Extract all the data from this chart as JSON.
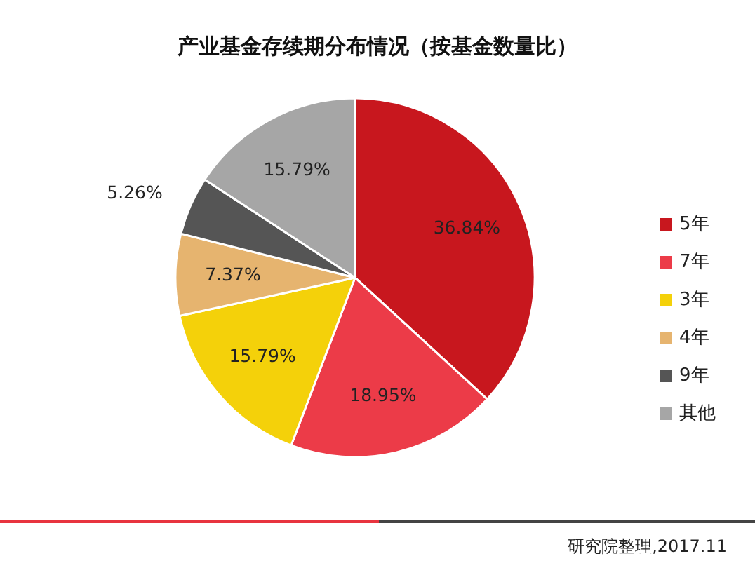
{
  "chart_data": {
    "type": "pie",
    "title": "产业基金存续期分布情况（按基金数量比）",
    "categories": [
      "5年",
      "7年",
      "3年",
      "4年",
      "9年",
      "其他"
    ],
    "values": [
      36.84,
      18.95,
      15.79,
      7.37,
      5.26,
      15.79
    ],
    "value_labels": [
      "36.84%",
      "18.95%",
      "15.79%",
      "7.37%",
      "5.26%",
      "15.79%"
    ],
    "colors": [
      "#c8171e",
      "#ec3b48",
      "#f4d10a",
      "#e6b46f",
      "#555555",
      "#a6a6a6"
    ],
    "legend": "right",
    "annotations": [
      "研究院整理,2017.11"
    ]
  }
}
